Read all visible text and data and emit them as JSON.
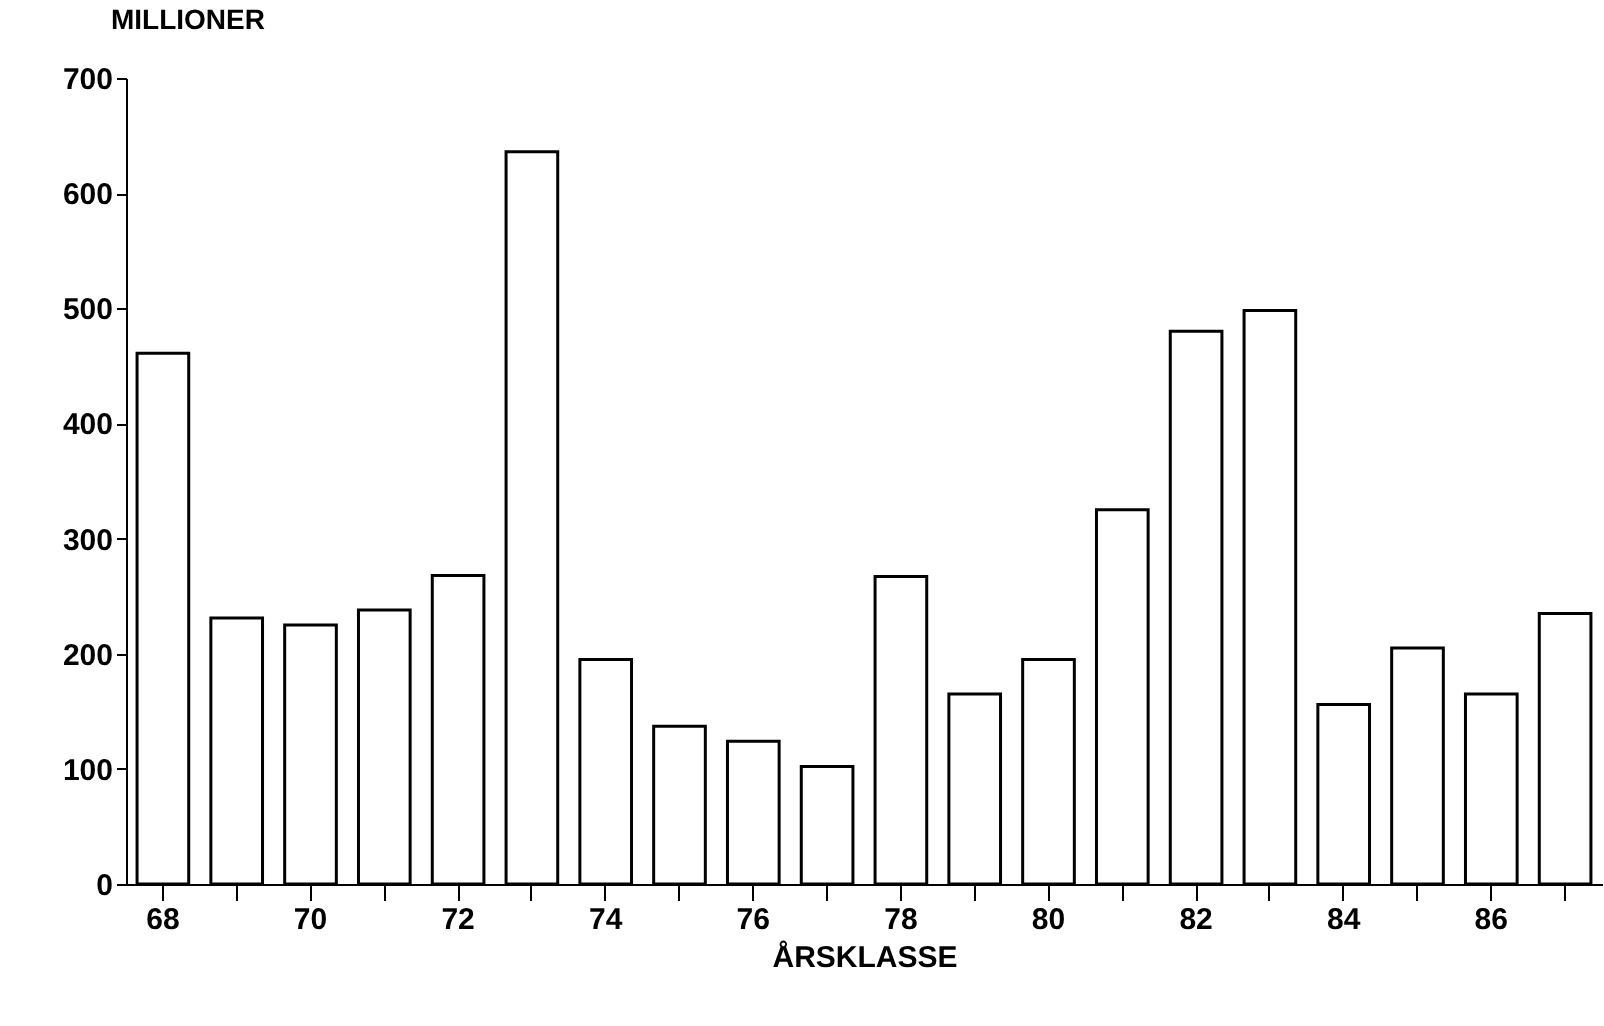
{
  "chart_data": {
    "type": "bar",
    "ylabel": "MILLIONER",
    "xlabel": "ÅRSKLASSE",
    "categories": [
      "68",
      null,
      "70",
      null,
      "72",
      null,
      "74",
      null,
      "76",
      null,
      "78",
      null,
      "80",
      null,
      "82",
      null,
      "84",
      null,
      "86",
      null
    ],
    "values": [
      461,
      231,
      225,
      238,
      268,
      636,
      195,
      137,
      124,
      102,
      267,
      165,
      195,
      325,
      480,
      498,
      156,
      205,
      165,
      235
    ],
    "color": "#ffffff",
    "ylim": [
      0,
      700
    ],
    "yticks": [
      0,
      100,
      200,
      300,
      400,
      500,
      600,
      700
    ],
    "grid": false
  }
}
